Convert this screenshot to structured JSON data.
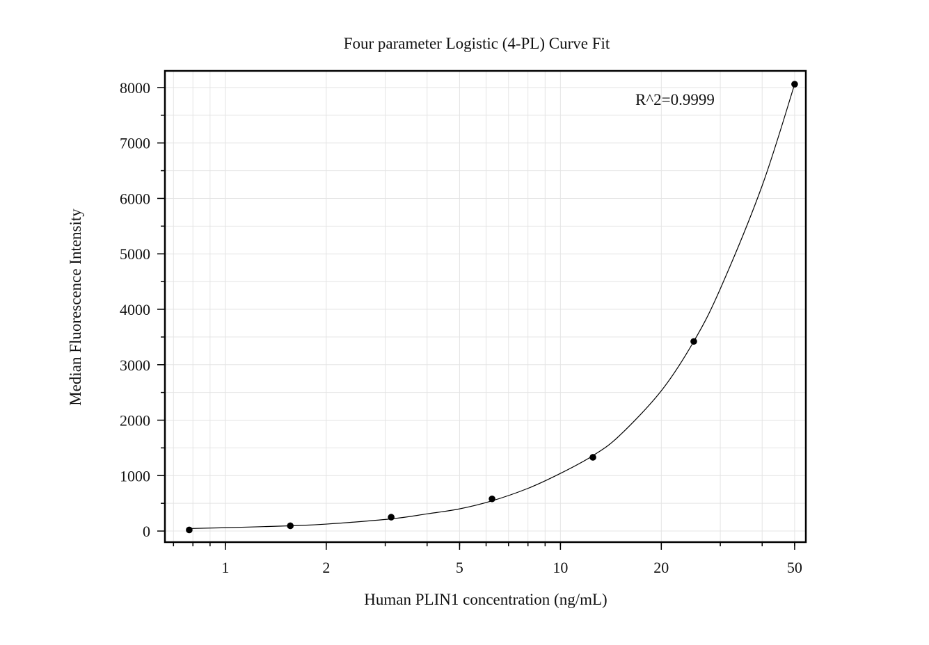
{
  "chart_data": {
    "type": "scatter",
    "title": "Four parameter Logistic (4-PL) Curve Fit",
    "xlabel": "Human PLIN1 concentration (ng/mL)",
    "ylabel": "Median Fluorescence Intensity",
    "annotation": "R^2=0.9999",
    "x_scale": "log",
    "xlim": [
      0.66,
      54
    ],
    "ylim": [
      -200,
      8300
    ],
    "x_ticks": [
      1,
      2,
      5,
      10,
      20,
      50
    ],
    "x_tick_labels": [
      "1",
      "2",
      "5",
      "10",
      "20",
      "50"
    ],
    "y_ticks": [
      0,
      1000,
      2000,
      3000,
      4000,
      5000,
      6000,
      7000,
      8000
    ],
    "y_tick_labels": [
      "0",
      "1000",
      "2000",
      "3000",
      "4000",
      "5000",
      "6000",
      "7000",
      "8000"
    ],
    "grid": true,
    "series": [
      {
        "kind": "points",
        "x": [
          0.78,
          1.5625,
          3.125,
          6.25,
          12.5,
          25,
          50
        ],
        "y": [
          20,
          95,
          250,
          580,
          1330,
          3420,
          8060
        ]
      },
      {
        "kind": "fit-line",
        "x": [
          0.78,
          1,
          1.5625,
          2,
          3.125,
          4,
          5,
          6.25,
          8,
          10,
          12.5,
          15,
          20,
          25,
          30,
          40,
          50
        ],
        "y": [
          45,
          60,
          95,
          125,
          220,
          310,
          400,
          545,
          770,
          1040,
          1360,
          1720,
          2530,
          3420,
          4370,
          6230,
          8060
        ]
      }
    ],
    "colors": {
      "points": "#000000",
      "line": "#000000",
      "grid": "#e4e4e4",
      "frame": "#000000"
    }
  }
}
